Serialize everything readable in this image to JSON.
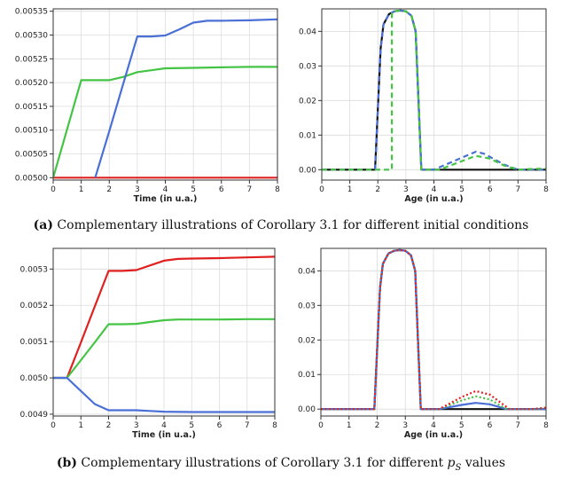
{
  "captions": {
    "a": {
      "tag": "(a)",
      "text": "Complementary illustrations of Corollary 3.1 for different initial conditions"
    },
    "b": {
      "tag": "(b)",
      "text_before": "Complementary illustrations of Corollary 3.1 for different",
      "sym": "p",
      "sub": "S",
      "text_after": "values"
    }
  },
  "chart_data": [
    {
      "id": "a_left",
      "type": "line",
      "title": "",
      "xlabel": "Time (in u.a.)",
      "ylabel": "",
      "xlim": [
        0,
        8
      ],
      "ylim": [
        0.004995,
        0.005355
      ],
      "xticks": [
        0,
        1,
        2,
        3,
        4,
        5,
        6,
        7,
        8
      ],
      "yticks": [
        0.005,
        0.00505,
        0.0051,
        0.00515,
        0.0052,
        0.00525,
        0.0053,
        0.00535
      ],
      "ytick_labels": [
        "0.00500",
        "0.00505",
        "0.00510",
        "0.00515",
        "0.00520",
        "0.00525",
        "0.00530",
        "0.00535"
      ],
      "grid": true,
      "series": [
        {
          "name": "red",
          "color": "#e02020",
          "style": "solid",
          "x": [
            0,
            8
          ],
          "y": [
            0.005,
            0.005
          ]
        },
        {
          "name": "green",
          "color": "#44c444",
          "style": "solid",
          "x": [
            0,
            1,
            2,
            2.5,
            3,
            3.5,
            4,
            5,
            6,
            7,
            8
          ],
          "y": [
            0.005,
            0.005205,
            0.005205,
            0.005212,
            0.005222,
            0.005226,
            0.00523,
            0.005231,
            0.005232,
            0.005233,
            0.005233
          ]
        },
        {
          "name": "blue",
          "color": "#4a6fd6",
          "style": "solid",
          "x": [
            1.5,
            2,
            2.5,
            3,
            3.5,
            4,
            4.5,
            5,
            5.5,
            6,
            7,
            8
          ],
          "y": [
            0.005,
            0.005098,
            0.005198,
            0.005297,
            0.005297,
            0.005299,
            0.005312,
            0.005326,
            0.00533,
            0.00533,
            0.005331,
            0.005333
          ]
        }
      ]
    },
    {
      "id": "a_right",
      "type": "line",
      "title": "",
      "xlabel": "Age (in u.a.)",
      "ylabel": "",
      "xlim": [
        0,
        8
      ],
      "ylim": [
        -0.003,
        0.0465
      ],
      "xticks": [
        0,
        1,
        2,
        3,
        4,
        5,
        6,
        7,
        8
      ],
      "yticks": [
        0,
        0.01,
        0.02,
        0.03,
        0.04
      ],
      "ytick_labels": [
        "0.00",
        "0.01",
        "0.02",
        "0.03",
        "0.04"
      ],
      "grid": true,
      "series": [
        {
          "name": "black",
          "color": "#111111",
          "style": "solid",
          "x": [
            0,
            1.9,
            2.1,
            2.2,
            2.4,
            2.6,
            2.8,
            3.0,
            3.2,
            3.35,
            3.45,
            3.55,
            8
          ],
          "y": [
            0,
            0,
            0.035,
            0.042,
            0.045,
            0.0458,
            0.046,
            0.0458,
            0.0445,
            0.04,
            0.02,
            0,
            0
          ]
        },
        {
          "name": "blue-dashed",
          "color": "#4a6fd6",
          "style": "dashed",
          "x": [
            0,
            1.9,
            2.1,
            2.2,
            2.4,
            2.6,
            2.8,
            3.0,
            3.2,
            3.35,
            3.45,
            3.55,
            4.0,
            5.0,
            5.5,
            5.8,
            6.5,
            7.0,
            8.0
          ],
          "y": [
            0,
            0,
            0.035,
            0.042,
            0.045,
            0.0458,
            0.046,
            0.0458,
            0.0445,
            0.04,
            0.02,
            0,
            0,
            0.0035,
            0.0052,
            0.0046,
            0.0015,
            0,
            0
          ]
        },
        {
          "name": "green-dashed",
          "color": "#44c444",
          "style": "dashed",
          "x": [
            0,
            2.5,
            2.5,
            2.6,
            2.8,
            3.0,
            3.2,
            3.35,
            3.45,
            3.55,
            4.2,
            5.0,
            5.5,
            6.0,
            6.5,
            7.0,
            7.5,
            8.0
          ],
          "y": [
            0,
            0,
            0.0455,
            0.0458,
            0.046,
            0.0458,
            0.0445,
            0.04,
            0.02,
            0,
            0,
            0.0025,
            0.004,
            0.0032,
            0.0012,
            0,
            0.0002,
            0.0003
          ]
        }
      ]
    },
    {
      "id": "b_left",
      "type": "line",
      "title": "",
      "xlabel": "Time (in u.a.)",
      "ylabel": "",
      "xlim": [
        0,
        8
      ],
      "ylim": [
        0.004895,
        0.005357
      ],
      "xticks": [
        0,
        1,
        2,
        3,
        4,
        5,
        6,
        7,
        8
      ],
      "yticks": [
        0.0049,
        0.005,
        0.0051,
        0.0052,
        0.0053
      ],
      "ytick_labels": [
        "0.0049",
        "0.0050",
        "0.0051",
        "0.0052",
        "0.0053"
      ],
      "grid": true,
      "series": [
        {
          "name": "red",
          "color": "#e02020",
          "style": "solid",
          "x": [
            0,
            0.5,
            1,
            1.5,
            2,
            2.5,
            3,
            3.5,
            4,
            4.5,
            5,
            6,
            7,
            8
          ],
          "y": [
            0.005,
            0.005,
            0.005098,
            0.005197,
            0.005295,
            0.005295,
            0.005297,
            0.00531,
            0.005323,
            0.005328,
            0.005329,
            0.00533,
            0.005332,
            0.005334
          ]
        },
        {
          "name": "green",
          "color": "#44c444",
          "style": "solid",
          "x": [
            0,
            0.5,
            1,
            1.5,
            2,
            2.5,
            3,
            3.5,
            4,
            4.5,
            5,
            6,
            7,
            8
          ],
          "y": [
            0.005,
            0.005,
            0.005049,
            0.005098,
            0.005148,
            0.005148,
            0.005149,
            0.005154,
            0.005159,
            0.005161,
            0.005161,
            0.005161,
            0.005162,
            0.005162
          ]
        },
        {
          "name": "blue",
          "color": "#4a6fd6",
          "style": "solid",
          "x": [
            0,
            0.5,
            1,
            1.5,
            2,
            2.5,
            3,
            3.5,
            4,
            5,
            6,
            7,
            8
          ],
          "y": [
            0.005,
            0.005,
            0.004964,
            0.004928,
            0.004911,
            0.004911,
            0.004911,
            0.004909,
            0.004907,
            0.004906,
            0.004906,
            0.004906,
            0.004906
          ]
        }
      ]
    },
    {
      "id": "b_right",
      "type": "line",
      "title": "",
      "xlabel": "Age (in u.a.)",
      "ylabel": "",
      "xlim": [
        0,
        8
      ],
      "ylim": [
        -0.002,
        0.0465
      ],
      "xticks": [
        0,
        1,
        2,
        3,
        4,
        5,
        6,
        7,
        8
      ],
      "yticks": [
        0,
        0.01,
        0.02,
        0.03,
        0.04
      ],
      "ytick_labels": [
        "0.00",
        "0.01",
        "0.02",
        "0.03",
        "0.04"
      ],
      "grid": true,
      "series": [
        {
          "name": "black",
          "color": "#111111",
          "style": "solid",
          "x": [
            0,
            1.9,
            2.1,
            2.2,
            2.4,
            2.6,
            2.8,
            3.0,
            3.2,
            3.35,
            3.45,
            3.55,
            8
          ],
          "y": [
            0,
            0,
            0.035,
            0.042,
            0.045,
            0.0458,
            0.046,
            0.0458,
            0.0445,
            0.04,
            0.02,
            0,
            0
          ]
        },
        {
          "name": "blue",
          "color": "#4a6fd6",
          "style": "solid",
          "x": [
            0,
            1.9,
            2.1,
            2.2,
            2.4,
            2.6,
            2.8,
            3.0,
            3.2,
            3.35,
            3.45,
            3.55,
            4.2,
            5.0,
            5.5,
            6.0,
            6.6,
            8.0
          ],
          "y": [
            0,
            0,
            0.035,
            0.042,
            0.045,
            0.0458,
            0.046,
            0.0458,
            0.0445,
            0.04,
            0.02,
            0,
            0,
            0.0012,
            0.0018,
            0.0014,
            0,
            0
          ]
        },
        {
          "name": "green-dotted",
          "color": "#44c444",
          "style": "dotted",
          "x": [
            0,
            1.9,
            2.1,
            2.2,
            2.4,
            2.6,
            2.8,
            3.0,
            3.2,
            3.35,
            3.45,
            3.55,
            4.2,
            5.0,
            5.5,
            6.0,
            6.6,
            7.5,
            8.0
          ],
          "y": [
            0,
            0,
            0.035,
            0.042,
            0.045,
            0.0458,
            0.046,
            0.0458,
            0.0445,
            0.04,
            0.02,
            0,
            0,
            0.0025,
            0.0037,
            0.0028,
            0,
            0,
            0.0003
          ]
        },
        {
          "name": "red-dotted",
          "color": "#e02020",
          "style": "dotted",
          "x": [
            0,
            1.9,
            2.1,
            2.2,
            2.4,
            2.6,
            2.8,
            3.0,
            3.2,
            3.35,
            3.45,
            3.55,
            4.2,
            5.0,
            5.5,
            6.0,
            6.7,
            7.5,
            8.0
          ],
          "y": [
            0,
            0,
            0.035,
            0.042,
            0.045,
            0.0458,
            0.046,
            0.0458,
            0.0445,
            0.04,
            0.02,
            0,
            0,
            0.0035,
            0.0052,
            0.0042,
            0,
            0,
            0.0004
          ]
        }
      ]
    }
  ]
}
